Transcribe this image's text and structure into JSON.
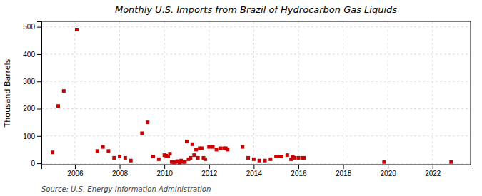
{
  "chart_data": {
    "type": "scatter",
    "title": "Monthly U.S. Imports from Brazil of Hydrocarbon Gas Liquids",
    "ylabel": "Thousand Barrels",
    "annotations": [
      "Source: U.S. Energy Information Administration"
    ],
    "color": "#cc0000",
    "marker": "square",
    "grid": true,
    "xlim": [
      2004.5,
      2023.7
    ],
    "ylim": [
      -5,
      520
    ],
    "xticks": [
      2006,
      2008,
      2010,
      2012,
      2014,
      2016,
      2018,
      2020,
      2022
    ],
    "yticks": [
      0,
      100,
      200,
      300,
      400,
      500
    ],
    "x": [
      2005.0,
      2005.25,
      2005.5,
      2006.08,
      2007.0,
      2007.25,
      2007.5,
      2007.75,
      2008.0,
      2008.25,
      2008.5,
      2009.0,
      2009.25,
      2009.5,
      2009.75,
      2010.0,
      2010.08,
      2010.17,
      2010.25,
      2010.33,
      2010.42,
      2010.5,
      2010.58,
      2010.67,
      2010.75,
      2010.83,
      2010.92,
      2011.0,
      2011.08,
      2011.17,
      2011.25,
      2011.33,
      2011.42,
      2011.5,
      2011.58,
      2011.67,
      2011.75,
      2011.83,
      2012.0,
      2012.17,
      2012.33,
      2012.5,
      2012.67,
      2012.75,
      2012.83,
      2013.5,
      2013.75,
      2014.0,
      2014.25,
      2014.5,
      2014.75,
      2015.0,
      2015.17,
      2015.25,
      2015.5,
      2015.67,
      2015.75,
      2015.83,
      2016.0,
      2016.17,
      2016.25,
      2019.83,
      2022.83
    ],
    "values": [
      40,
      210,
      265,
      490,
      45,
      60,
      45,
      20,
      25,
      20,
      10,
      110,
      150,
      25,
      15,
      30,
      28,
      25,
      35,
      5,
      3,
      5,
      8,
      3,
      10,
      5,
      5,
      80,
      15,
      20,
      70,
      30,
      50,
      20,
      55,
      55,
      20,
      15,
      60,
      60,
      50,
      55,
      55,
      55,
      50,
      60,
      20,
      15,
      10,
      10,
      15,
      25,
      25,
      25,
      30,
      15,
      25,
      20,
      20,
      20,
      20,
      5,
      5
    ]
  }
}
